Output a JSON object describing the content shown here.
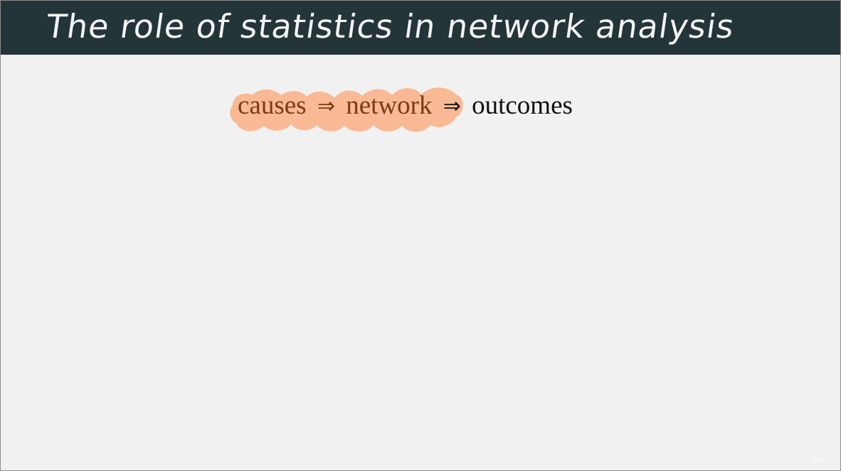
{
  "slide": {
    "title": "The role of statistics in network analysis",
    "equation": {
      "term1": "causes",
      "arrow1": "⇒",
      "term2": "network",
      "arrow2": "⇒",
      "term3": "outcomes",
      "highlight_color": "#f9b58f",
      "highlight_text_color": "#7b3a12"
    },
    "page_number": "6/11"
  },
  "colors": {
    "title_bar": "#24353a",
    "background": "#f1f1f1"
  }
}
